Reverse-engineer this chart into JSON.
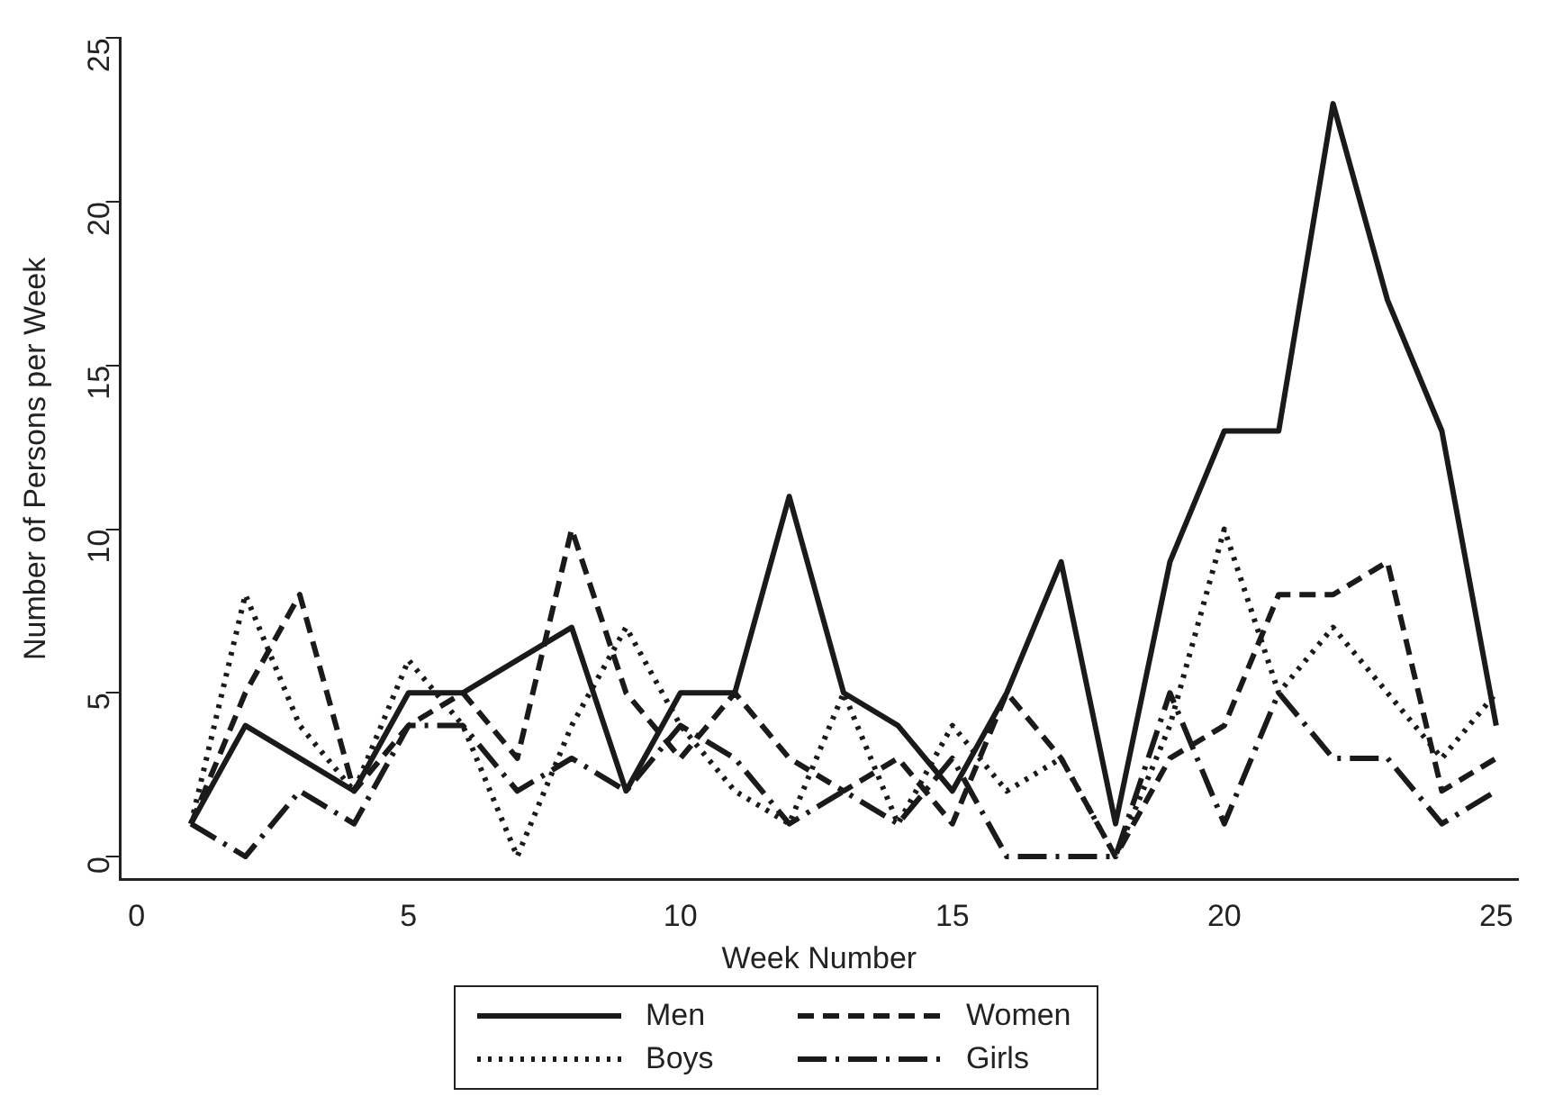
{
  "chart_data": {
    "type": "line",
    "xlabel": "Week Number",
    "ylabel": "Number of Persons per Week",
    "x": [
      1,
      2,
      3,
      4,
      5,
      6,
      7,
      8,
      9,
      10,
      11,
      12,
      13,
      14,
      15,
      16,
      17,
      18,
      19,
      20,
      21,
      22,
      23,
      24,
      25
    ],
    "series": [
      {
        "name": "Men",
        "color": "#1a1a1a",
        "line_style": "solid",
        "values": [
          1,
          4,
          3,
          2,
          5,
          5,
          6,
          7,
          2,
          5,
          5,
          11,
          5,
          4,
          2,
          5,
          9,
          1,
          9,
          13,
          13,
          23,
          17,
          13,
          4
        ]
      },
      {
        "name": "Women",
        "color": "#1a1a1a",
        "line_style": "dashed",
        "values": [
          1,
          5,
          8,
          2,
          4,
          5,
          3,
          10,
          5,
          3,
          5,
          3,
          2,
          3,
          1,
          5,
          3,
          0,
          3,
          4,
          8,
          8,
          9,
          2,
          3
        ]
      },
      {
        "name": "Boys",
        "color": "#1a1a1a",
        "line_style": "dotted",
        "values": [
          1,
          8,
          4,
          2,
          6,
          4,
          0,
          4,
          7,
          4,
          2,
          1,
          5,
          1,
          4,
          2,
          3,
          0,
          4,
          10,
          5,
          7,
          5,
          3,
          5
        ]
      },
      {
        "name": "Girls",
        "color": "#1a1a1a",
        "line_style": "dashdot",
        "values": [
          1,
          0,
          2,
          1,
          4,
          4,
          2,
          3,
          2,
          4,
          3,
          1,
          2,
          1,
          3,
          0,
          0,
          0,
          5,
          1,
          5,
          3,
          3,
          1,
          2
        ]
      }
    ],
    "xlim": [
      -0.3,
      25.4
    ],
    "ylim": [
      -0.7,
      25
    ],
    "xticks": [
      0,
      5,
      10,
      15,
      20,
      25
    ],
    "yticks": [
      0,
      5,
      10,
      15,
      20,
      25
    ],
    "grid": false,
    "legend": "bottom",
    "marker": "none"
  }
}
